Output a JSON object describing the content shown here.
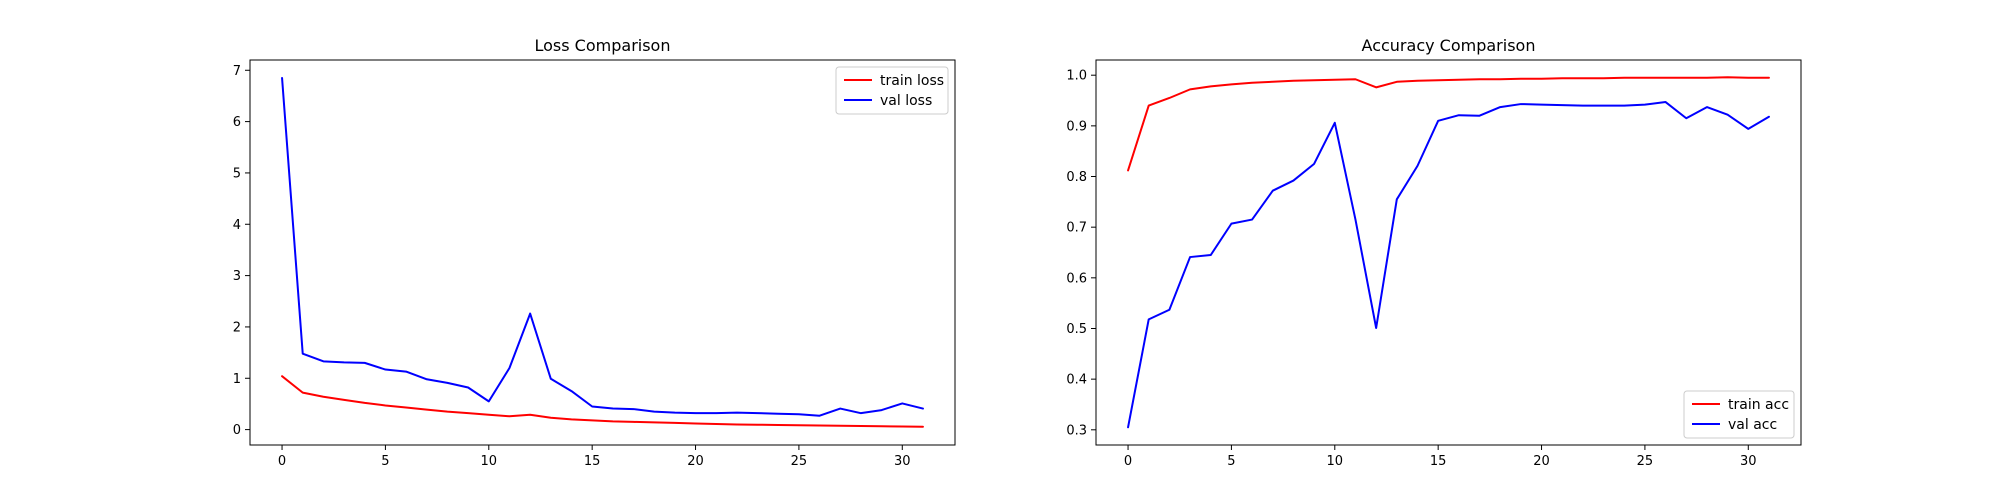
{
  "chart_data": [
    {
      "type": "line",
      "title": "Loss Comparison",
      "xlabel": "",
      "ylabel": "",
      "xlim": [
        -1.55,
        32.55
      ],
      "ylim": [
        -0.3,
        7.2
      ],
      "xticks": [
        0,
        5,
        10,
        15,
        20,
        25,
        30
      ],
      "yticks": [
        0,
        1,
        2,
        3,
        4,
        5,
        6,
        7
      ],
      "legend_position": "upper right",
      "grid": false,
      "series": [
        {
          "name": "train loss",
          "color": "#ff0000",
          "x": [
            0,
            1,
            2,
            3,
            4,
            5,
            6,
            7,
            8,
            9,
            10,
            11,
            12,
            13,
            14,
            15,
            16,
            17,
            18,
            19,
            20,
            21,
            22,
            23,
            24,
            25,
            26,
            27,
            28,
            29,
            30,
            31
          ],
          "values": [
            1.04,
            0.72,
            0.64,
            0.58,
            0.52,
            0.47,
            0.43,
            0.39,
            0.35,
            0.32,
            0.29,
            0.26,
            0.29,
            0.23,
            0.2,
            0.18,
            0.16,
            0.15,
            0.14,
            0.13,
            0.12,
            0.11,
            0.1,
            0.095,
            0.09,
            0.085,
            0.08,
            0.075,
            0.07,
            0.065,
            0.06,
            0.055
          ]
        },
        {
          "name": "val loss",
          "color": "#0000ff",
          "x": [
            0,
            1,
            2,
            3,
            4,
            5,
            6,
            7,
            8,
            9,
            10,
            11,
            12,
            13,
            14,
            15,
            16,
            17,
            18,
            19,
            20,
            21,
            22,
            23,
            24,
            25,
            26,
            27,
            28,
            29,
            30,
            31
          ],
          "values": [
            6.85,
            1.48,
            1.33,
            1.31,
            1.3,
            1.17,
            1.13,
            0.98,
            0.91,
            0.82,
            0.55,
            1.2,
            2.26,
            0.99,
            0.75,
            0.45,
            0.41,
            0.4,
            0.35,
            0.33,
            0.32,
            0.32,
            0.33,
            0.32,
            0.31,
            0.3,
            0.27,
            0.41,
            0.32,
            0.38,
            0.51,
            0.41
          ]
        }
      ]
    },
    {
      "type": "line",
      "title": "Accuracy Comparison",
      "xlabel": "",
      "ylabel": "",
      "xlim": [
        -1.55,
        32.55
      ],
      "ylim": [
        0.27,
        1.03
      ],
      "xticks": [
        0,
        5,
        10,
        15,
        20,
        25,
        30
      ],
      "yticks": [
        0.3,
        0.4,
        0.5,
        0.6,
        0.7,
        0.8,
        0.9,
        1.0
      ],
      "legend_position": "lower right",
      "grid": false,
      "series": [
        {
          "name": "train acc",
          "color": "#ff0000",
          "x": [
            0,
            1,
            2,
            3,
            4,
            5,
            6,
            7,
            8,
            9,
            10,
            11,
            12,
            13,
            14,
            15,
            16,
            17,
            18,
            19,
            20,
            21,
            22,
            23,
            24,
            25,
            26,
            27,
            28,
            29,
            30,
            31
          ],
          "values": [
            0.812,
            0.94,
            0.955,
            0.972,
            0.978,
            0.982,
            0.985,
            0.987,
            0.989,
            0.99,
            0.991,
            0.992,
            0.976,
            0.987,
            0.989,
            0.99,
            0.991,
            0.992,
            0.992,
            0.993,
            0.993,
            0.994,
            0.994,
            0.994,
            0.995,
            0.995,
            0.995,
            0.995,
            0.995,
            0.996,
            0.995,
            0.995
          ]
        },
        {
          "name": "val acc",
          "color": "#0000ff",
          "x": [
            0,
            1,
            2,
            3,
            4,
            5,
            6,
            7,
            8,
            9,
            10,
            11,
            12,
            13,
            14,
            15,
            16,
            17,
            18,
            19,
            20,
            21,
            22,
            23,
            24,
            25,
            26,
            27,
            28,
            29,
            30,
            31
          ],
          "values": [
            0.305,
            0.518,
            0.537,
            0.641,
            0.645,
            0.707,
            0.715,
            0.772,
            0.792,
            0.825,
            0.906,
            0.715,
            0.501,
            0.755,
            0.821,
            0.91,
            0.921,
            0.92,
            0.937,
            0.943,
            0.942,
            0.941,
            0.94,
            0.94,
            0.94,
            0.942,
            0.947,
            0.915,
            0.937,
            0.922,
            0.894,
            0.918
          ]
        }
      ]
    }
  ]
}
